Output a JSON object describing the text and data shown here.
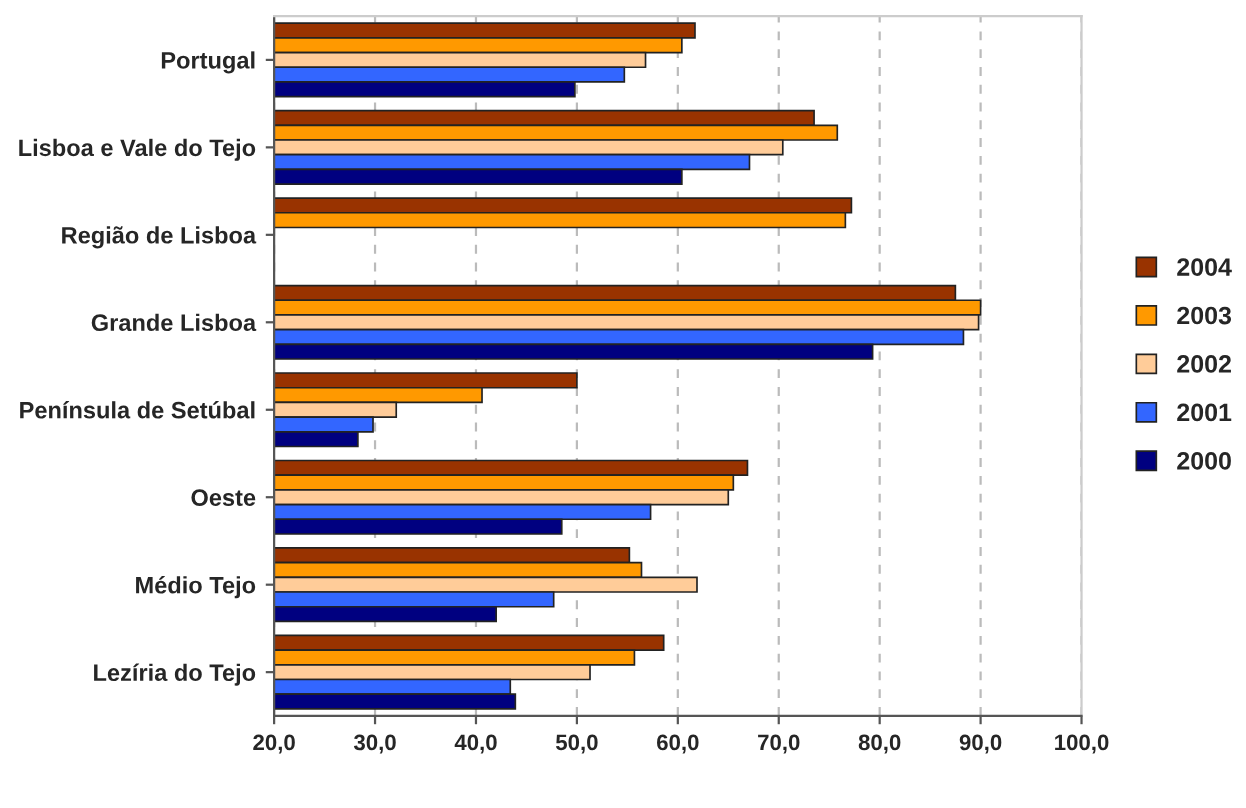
{
  "chart_data": {
    "type": "bar",
    "orientation": "horizontal",
    "categories": [
      "Portugal",
      "Lisboa e Vale do Tejo",
      "Região de Lisboa",
      "Grande Lisboa",
      "Península de Setúbal",
      "Oeste",
      "Médio Tejo",
      "Lezíria do Tejo"
    ],
    "series": [
      {
        "name": "2004",
        "color": "#993300",
        "values": [
          61.7,
          73.5,
          77.2,
          87.5,
          50.0,
          66.9,
          55.2,
          58.6
        ]
      },
      {
        "name": "2003",
        "color": "#ff9900",
        "values": [
          60.4,
          75.8,
          76.6,
          90.0,
          40.6,
          65.5,
          56.4,
          55.7
        ]
      },
      {
        "name": "2002",
        "color": "#ffcc99",
        "values": [
          56.8,
          70.4,
          null,
          89.8,
          32.1,
          65.0,
          61.9,
          51.3
        ]
      },
      {
        "name": "2001",
        "color": "#3366ff",
        "values": [
          54.7,
          67.1,
          null,
          88.3,
          29.8,
          57.3,
          47.7,
          43.4
        ]
      },
      {
        "name": "2000",
        "color": "#000080",
        "values": [
          49.8,
          60.4,
          null,
          79.3,
          28.3,
          48.5,
          42.0,
          43.9
        ]
      }
    ],
    "xlim": [
      20,
      100
    ],
    "xticks": [
      {
        "value": 20,
        "label": "20,0"
      },
      {
        "value": 30,
        "label": "30,0"
      },
      {
        "value": 40,
        "label": "40,0"
      },
      {
        "value": 50,
        "label": "50,0"
      },
      {
        "value": 60,
        "label": "60,0"
      },
      {
        "value": 70,
        "label": "70,0"
      },
      {
        "value": 80,
        "label": "80,0"
      },
      {
        "value": 90,
        "label": "90,0"
      },
      {
        "value": 100,
        "label": "100,0"
      }
    ],
    "grid": "x",
    "legend": "right"
  }
}
